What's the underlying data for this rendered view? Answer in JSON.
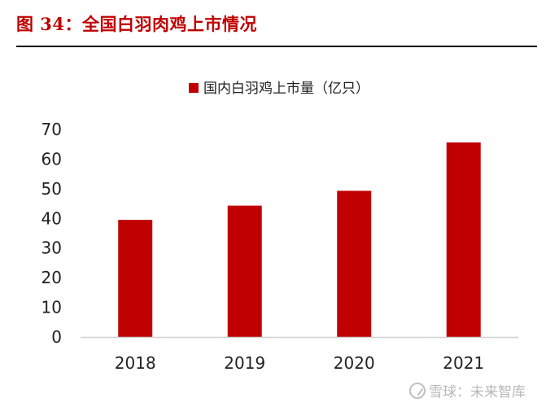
{
  "figure_title": "图 34：全国白羽肉鸡上市情况",
  "watermark": "雪球：未来智库",
  "colors": {
    "bar": "#c00000",
    "title": "#c00000"
  },
  "chart_data": {
    "type": "bar",
    "title": "",
    "xlabel": "",
    "ylabel": "",
    "categories": [
      "2018",
      "2019",
      "2020",
      "2021"
    ],
    "series": [
      {
        "name": "国内白羽鸡上市量（亿只）",
        "values": [
          39.5,
          44.3,
          49.3,
          65.6
        ]
      }
    ],
    "ylim": [
      0,
      70
    ],
    "yticks": [
      "0",
      "10",
      "20",
      "30",
      "40",
      "50",
      "60",
      "70"
    ],
    "grid": false,
    "legend": "top-center"
  }
}
